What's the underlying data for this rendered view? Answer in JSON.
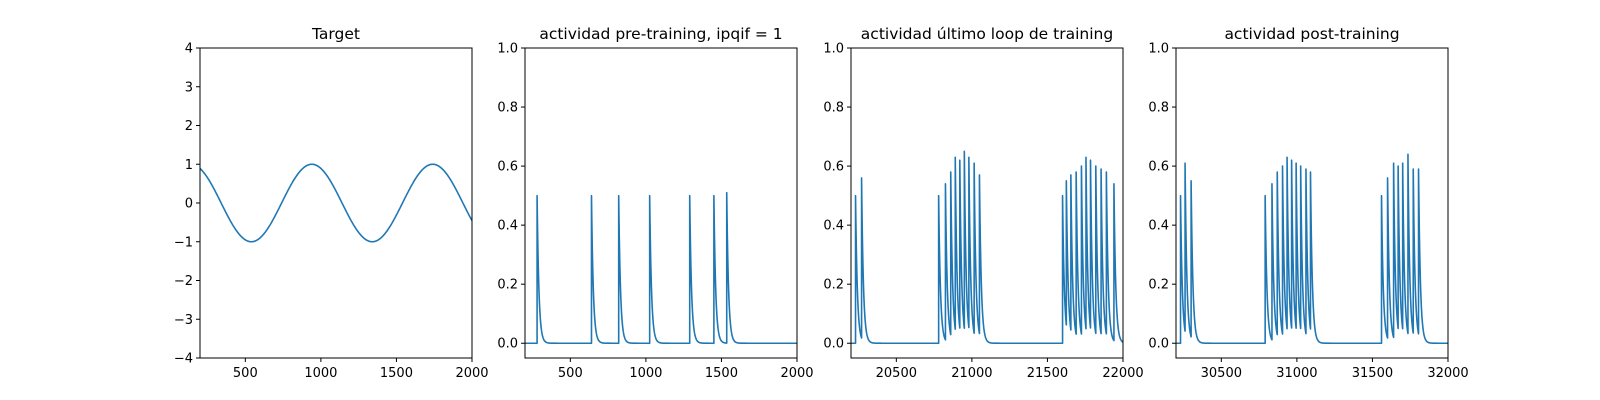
{
  "chart_data": [
    {
      "type": "line",
      "title": "Target",
      "xlim": [
        200,
        2000
      ],
      "ylim": [
        -4,
        4
      ],
      "xticks": [
        500,
        1000,
        1500,
        2000
      ],
      "yticks": [
        -4,
        -3,
        -2,
        -1,
        0,
        1,
        2,
        3,
        4
      ],
      "xtick_labels": [
        "500",
        "1000",
        "1500",
        "2000"
      ],
      "ytick_labels": [
        "−4",
        "−3",
        "−2",
        "−1",
        "0",
        "1",
        "2",
        "3",
        "4"
      ],
      "line_color": "#1f77b4",
      "grid": false,
      "series": [
        {
          "kind": "sine",
          "amplitude": 1.0,
          "period": 800,
          "x_of_first_peak": 940,
          "x_range": [
            200,
            2000
          ]
        }
      ]
    },
    {
      "type": "line",
      "title": "actividad pre-training, ipqif = 1",
      "xlim": [
        200,
        2000
      ],
      "ylim": [
        -0.05,
        1.0
      ],
      "xticks": [
        500,
        1000,
        1500,
        2000
      ],
      "yticks": [
        0.0,
        0.2,
        0.4,
        0.6,
        0.8,
        1.0
      ],
      "xtick_labels": [
        "500",
        "1000",
        "1500",
        "2000"
      ],
      "ytick_labels": [
        "0.0",
        "0.2",
        "0.4",
        "0.6",
        "0.8",
        "1.0"
      ],
      "line_color": "#1f77b4",
      "grid": false,
      "series": [
        {
          "kind": "spike_train",
          "spike_times": [
            280,
            640,
            820,
            1025,
            1290,
            1450,
            1535
          ],
          "spike_peaks": [
            0.5,
            0.5,
            0.5,
            0.5,
            0.5,
            0.5,
            0.51
          ],
          "decay_tau": 12
        }
      ]
    },
    {
      "type": "line",
      "title": "actividad último loop de training",
      "xlim": [
        20200,
        22000
      ],
      "ylim": [
        -0.05,
        1.0
      ],
      "xticks": [
        20500,
        21000,
        21500,
        22000
      ],
      "yticks": [
        0.0,
        0.2,
        0.4,
        0.6,
        0.8,
        1.0
      ],
      "xtick_labels": [
        "20500",
        "21000",
        "21500",
        "22000"
      ],
      "ytick_labels": [
        "0.0",
        "0.2",
        "0.4",
        "0.6",
        "0.8",
        "1.0"
      ],
      "line_color": "#1f77b4",
      "grid": false,
      "series": [
        {
          "kind": "spike_train",
          "spike_times": [
            20230,
            20270,
            20780,
            20825,
            20860,
            20890,
            20920,
            20950,
            20980,
            21015,
            21050,
            21600,
            21625,
            21655,
            21690,
            21725,
            21755,
            21785,
            21820,
            21855,
            21890,
            21940
          ],
          "spike_peaks": [
            0.5,
            0.56,
            0.5,
            0.54,
            0.58,
            0.63,
            0.62,
            0.65,
            0.63,
            0.61,
            0.57,
            0.5,
            0.55,
            0.57,
            0.58,
            0.6,
            0.63,
            0.62,
            0.6,
            0.59,
            0.58,
            0.54
          ],
          "decay_tau": 12
        }
      ]
    },
    {
      "type": "line",
      "title": "actividad post-training",
      "xlim": [
        30200,
        32000
      ],
      "ylim": [
        -0.05,
        1.0
      ],
      "xticks": [
        30500,
        31000,
        31500,
        32000
      ],
      "yticks": [
        0.0,
        0.2,
        0.4,
        0.6,
        0.8,
        1.0
      ],
      "xtick_labels": [
        "30500",
        "31000",
        "31500",
        "32000"
      ],
      "ytick_labels": [
        "0.0",
        "0.2",
        "0.4",
        "0.6",
        "0.8",
        "1.0"
      ],
      "line_color": "#1f77b4",
      "grid": false,
      "series": [
        {
          "kind": "spike_train",
          "spike_times": [
            30230,
            30260,
            30300,
            30790,
            30835,
            30870,
            30905,
            30935,
            30965,
            30995,
            31025,
            31060,
            31090,
            31560,
            31600,
            31640,
            31670,
            31700,
            31735,
            31770,
            31805
          ],
          "spike_peaks": [
            0.5,
            0.61,
            0.55,
            0.5,
            0.54,
            0.58,
            0.6,
            0.63,
            0.62,
            0.61,
            0.6,
            0.59,
            0.58,
            0.5,
            0.56,
            0.61,
            0.6,
            0.61,
            0.64,
            0.59,
            0.59
          ],
          "decay_tau": 12
        }
      ]
    }
  ]
}
